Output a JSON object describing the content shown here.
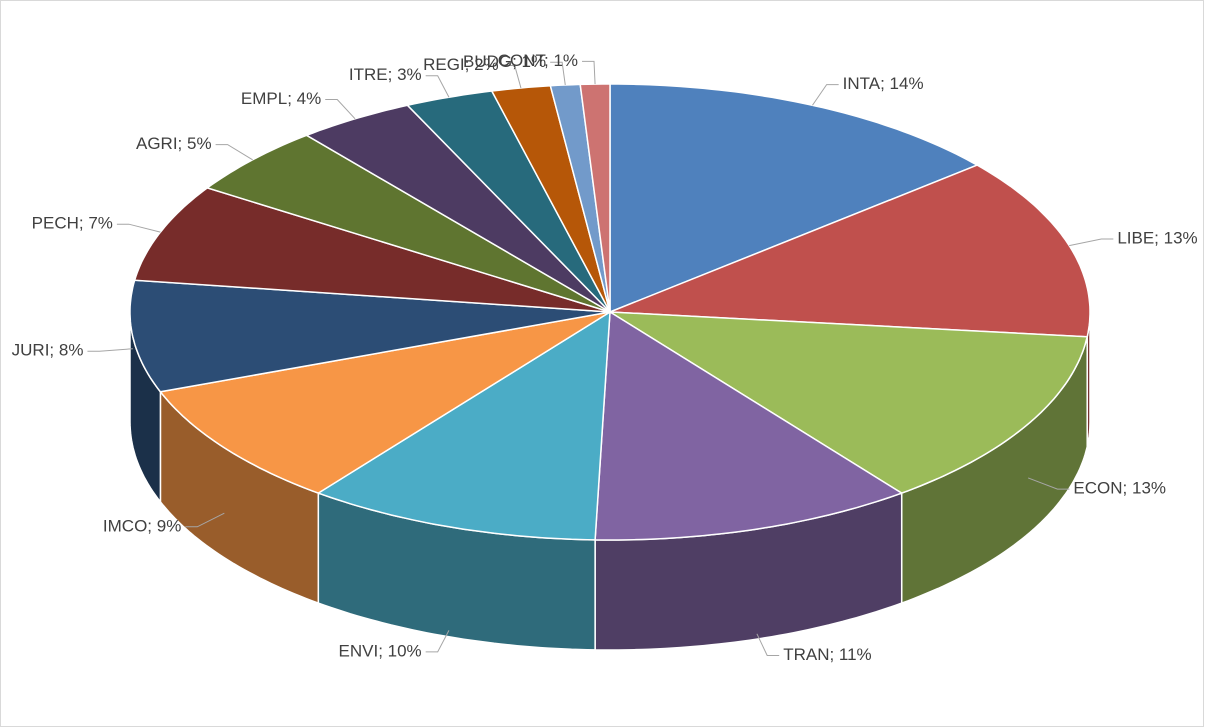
{
  "chart_data": {
    "type": "pie",
    "values": [
      14,
      13,
      13,
      11,
      10,
      9,
      8,
      7,
      5,
      4,
      3,
      2,
      1,
      1
    ],
    "value_labels": [
      "INTA; 14%",
      "LIBE; 13%",
      "ECON; 13%",
      "TRAN; 11%",
      "ENVI; 10%",
      "IMCO; 9%",
      "JURI; 8%",
      "PECH; 7%",
      "AGRI; 5%",
      "EMPL; 4%",
      "ITRE; 3%",
      "REGI; 2%",
      "BUDG; 1%",
      "CONT; 1%"
    ],
    "colors": [
      "#4f81bd",
      "#c0504d",
      "#9bbb59",
      "#8064a2",
      "#4bacc6",
      "#f79646",
      "#2c4d75",
      "#772c2a",
      "#5f7530",
      "#4d3b62",
      "#276a7c",
      "#b65708",
      "#729aca",
      "#cd7371"
    ]
  }
}
